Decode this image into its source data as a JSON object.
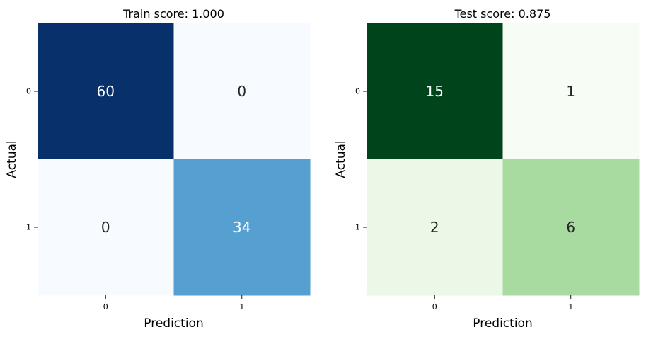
{
  "chart_data": [
    {
      "type": "heatmap",
      "title": "Train score: 1.000",
      "xlabel": "Prediction",
      "ylabel": "Actual",
      "x_categories": [
        "0",
        "1"
      ],
      "y_categories": [
        "0",
        "1"
      ],
      "values": [
        [
          60,
          0
        ],
        [
          0,
          34
        ]
      ],
      "cell_colors": [
        [
          "#08306b",
          "#f7fbff"
        ],
        [
          "#f7fbff",
          "#56a0d1"
        ]
      ],
      "label_colors": [
        [
          "#ffffff",
          "#262626"
        ],
        [
          "#262626",
          "#ffffff"
        ]
      ],
      "colormap": "Blues",
      "grid": false,
      "colorbar": false
    },
    {
      "type": "heatmap",
      "title": "Test score: 0.875",
      "xlabel": "Prediction",
      "ylabel": "Actual",
      "x_categories": [
        "0",
        "1"
      ],
      "y_categories": [
        "0",
        "1"
      ],
      "values": [
        [
          15,
          1
        ],
        [
          2,
          6
        ]
      ],
      "cell_colors": [
        [
          "#00441b",
          "#f7fcf5"
        ],
        [
          "#ebf7e7",
          "#a7dba0"
        ]
      ],
      "label_colors": [
        [
          "#ffffff",
          "#262626"
        ],
        [
          "#262626",
          "#262626"
        ]
      ],
      "colormap": "Greens",
      "grid": false,
      "colorbar": false
    }
  ]
}
